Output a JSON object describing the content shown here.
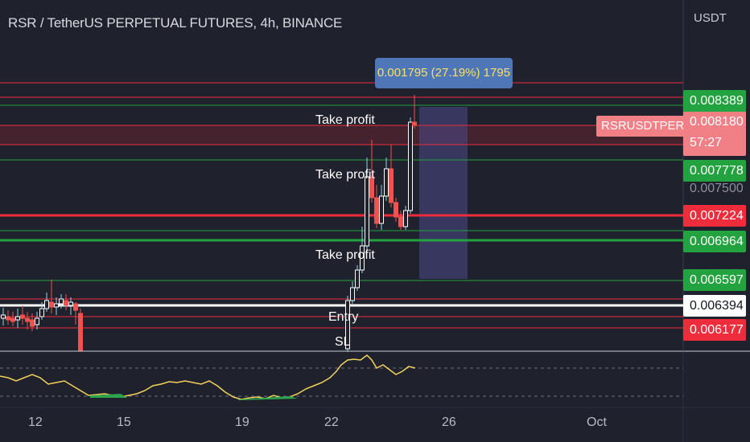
{
  "header": {
    "title": "RSR / TetherUS PERPETUAL FUTURES, 4h, BINANCE",
    "currency": "USDT"
  },
  "measure": {
    "label": "0.001795 (27.19%) 1795"
  },
  "current_price": {
    "symbol": "RSRUSDTPERP",
    "price": "0.008180",
    "countdown": "57:27"
  },
  "price_tags": [
    {
      "value": "0.008389",
      "style": "green"
    },
    {
      "value": "0.007778",
      "style": "green"
    },
    {
      "value": "0.007500",
      "style": "plain"
    },
    {
      "value": "0.007224",
      "style": "red"
    },
    {
      "value": "0.006964",
      "style": "green"
    },
    {
      "value": "0.006597",
      "style": "green"
    },
    {
      "value": "0.006394",
      "style": "white"
    },
    {
      "value": "0.006177",
      "style": "red"
    }
  ],
  "annotations": {
    "take_profit_1": "Take profit",
    "take_profit_2": "Take profit",
    "take_profit_3": "Take profit",
    "entry": "Entry",
    "stop_loss": "SL"
  },
  "x_axis": {
    "ticks": [
      "12",
      "15",
      "19",
      "22",
      "26",
      "Oct"
    ]
  },
  "colors": {
    "background": "#1f212c",
    "up_candle": "#ffffff",
    "down_candle": "#ef5350",
    "green_line": "#22a33f",
    "red_line": "#ef2c3b",
    "oscillator": "#f2d25c",
    "projection_box": "#4a4a8a"
  }
}
